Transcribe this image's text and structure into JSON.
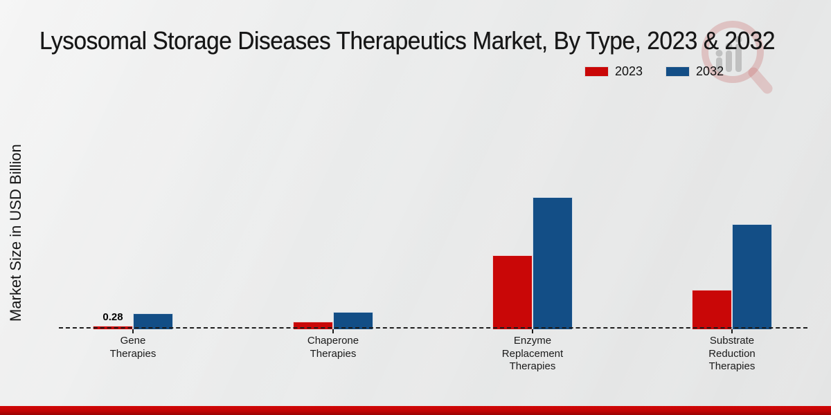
{
  "page": {
    "background_color": "#e8e9e9",
    "footer_bar_color": "#c10505",
    "watermark_icon": "magnifier-bar-chart-logo"
  },
  "chart_data": {
    "type": "bar",
    "title": "Lysosomal Storage Diseases Therapeutics Market, By Type, 2023 & 2032",
    "ylabel": "Market Size in USD Billion",
    "xlabel": "",
    "categories": [
      "Gene\nTherapies",
      "Chaperone\nTherapies",
      "Enzyme\nReplacement\nTherapies",
      "Substrate\nReduction\nTherapies"
    ],
    "series": [
      {
        "name": "2023",
        "color": "#c90707",
        "values": [
          0.28,
          0.6,
          6.0,
          3.2
        ]
      },
      {
        "name": "2032",
        "color": "#134e86",
        "values": [
          1.29,
          1.38,
          10.7,
          8.5
        ]
      }
    ],
    "annotations": [
      {
        "series": 0,
        "category": 0,
        "text": "0.28"
      }
    ],
    "ylim": [
      0,
      12
    ],
    "grid": false,
    "legend_position": "top-right",
    "baseline_style": "dashed"
  }
}
